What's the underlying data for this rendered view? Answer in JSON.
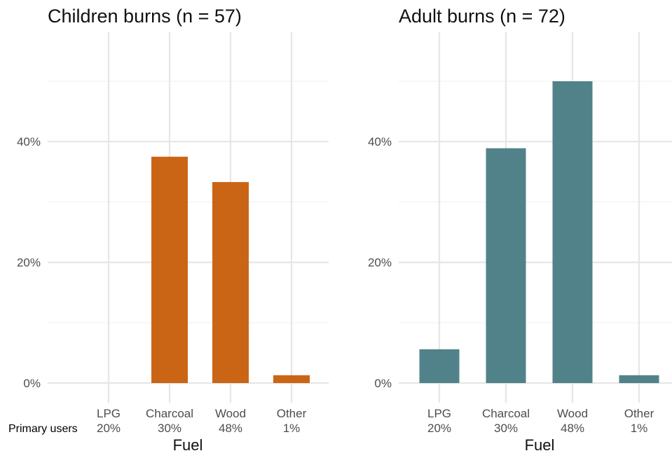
{
  "chart_data": [
    {
      "type": "bar",
      "title": "Children burns (n = 57)",
      "xlabel": "Fuel",
      "ylabel": "",
      "categories": [
        "LPG",
        "Charcoal",
        "Wood",
        "Other"
      ],
      "primary_users": [
        "20%",
        "30%",
        "48%",
        "1%"
      ],
      "values": [
        0,
        37.5,
        33.3,
        1.3
      ],
      "ylim": [
        0,
        50
      ],
      "yticks": [
        0,
        20,
        40
      ],
      "ytick_labels": [
        "0%",
        "20%",
        "40%"
      ],
      "color": "#cb6516",
      "grid": true
    },
    {
      "type": "bar",
      "title": "Adult burns (n = 72)",
      "xlabel": "Fuel",
      "ylabel": "",
      "categories": [
        "LPG",
        "Charcoal",
        "Wood",
        "Other"
      ],
      "primary_users": [
        "20%",
        "30%",
        "48%",
        "1%"
      ],
      "values": [
        5.6,
        38.9,
        50.0,
        1.3
      ],
      "ylim": [
        0,
        50
      ],
      "yticks": [
        0,
        20,
        40
      ],
      "ytick_labels": [
        "0%",
        "20%",
        "40%"
      ],
      "color": "#528289",
      "grid": true
    }
  ],
  "row_label": "Primary users"
}
